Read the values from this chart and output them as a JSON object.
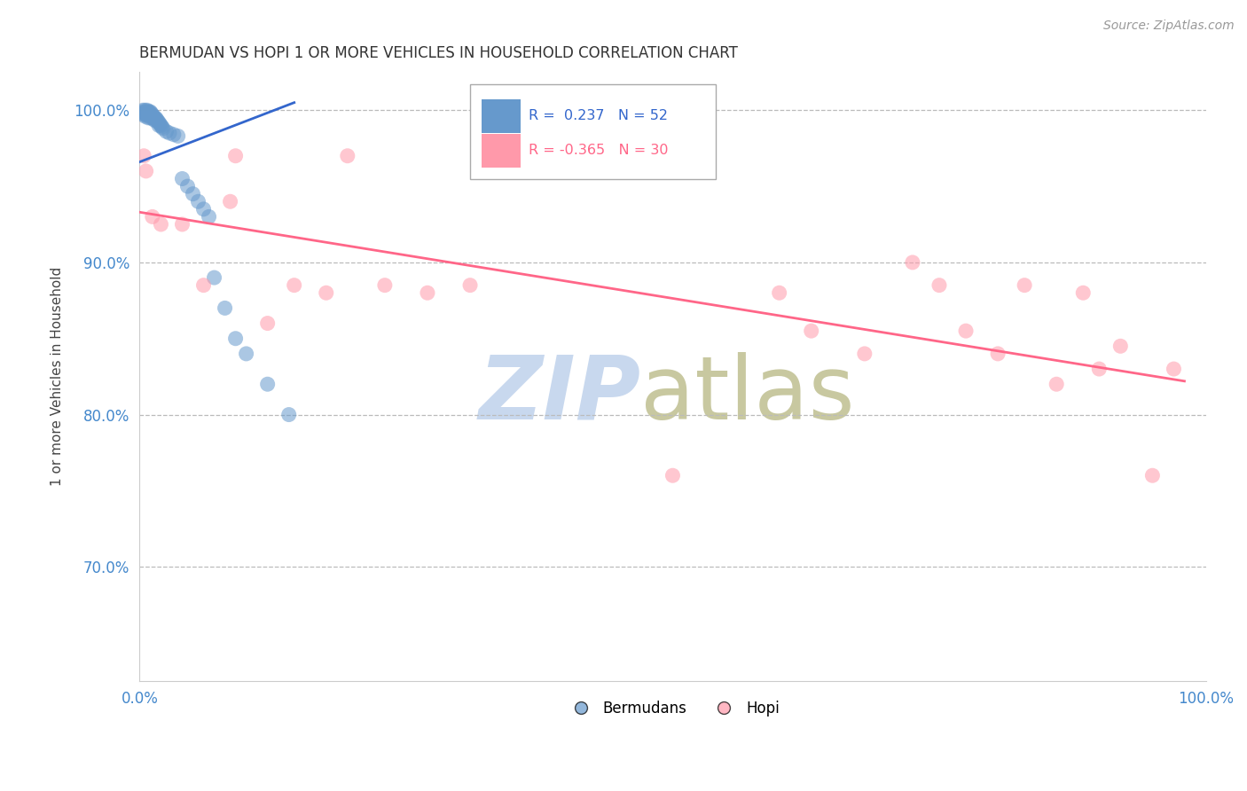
{
  "title": "BERMUDAN VS HOPI 1 OR MORE VEHICLES IN HOUSEHOLD CORRELATION CHART",
  "source": "Source: ZipAtlas.com",
  "ylabel": "1 or more Vehicles in Household",
  "xlim": [
    0.0,
    1.0
  ],
  "ylim": [
    0.625,
    1.025
  ],
  "y_tick_positions": [
    0.7,
    0.8,
    0.9,
    1.0
  ],
  "legend_r1": "0.237",
  "legend_n1": "52",
  "legend_r2": "-0.365",
  "legend_n2": "30",
  "bermudan_color": "#6699cc",
  "hopi_color": "#ff99aa",
  "trendline_blue": "#3366cc",
  "trendline_pink": "#ff6688",
  "grid_color": "#bbbbbb",
  "zip_color": "#c8d8ee",
  "atlas_color": "#c8c8a0",
  "bermudan_x": [
    0.003,
    0.003,
    0.004,
    0.004,
    0.005,
    0.005,
    0.005,
    0.006,
    0.006,
    0.007,
    0.007,
    0.008,
    0.008,
    0.008,
    0.009,
    0.009,
    0.01,
    0.01,
    0.01,
    0.011,
    0.011,
    0.012,
    0.012,
    0.013,
    0.013,
    0.014,
    0.015,
    0.015,
    0.016,
    0.017,
    0.018,
    0.018,
    0.019,
    0.02,
    0.021,
    0.022,
    0.025,
    0.028,
    0.032,
    0.036,
    0.04,
    0.045,
    0.05,
    0.055,
    0.06,
    0.065,
    0.07,
    0.08,
    0.09,
    0.1,
    0.12,
    0.14
  ],
  "bermudan_y": [
    1.0,
    0.998,
    0.999,
    0.997,
    1.0,
    0.998,
    0.996,
    0.999,
    0.997,
    1.0,
    0.998,
    0.999,
    0.997,
    0.995,
    0.999,
    0.997,
    0.999,
    0.997,
    0.995,
    0.998,
    0.996,
    0.997,
    0.995,
    0.996,
    0.994,
    0.995,
    0.995,
    0.993,
    0.994,
    0.993,
    0.992,
    0.99,
    0.991,
    0.99,
    0.989,
    0.988,
    0.986,
    0.985,
    0.984,
    0.983,
    0.955,
    0.95,
    0.945,
    0.94,
    0.935,
    0.93,
    0.89,
    0.87,
    0.85,
    0.84,
    0.82,
    0.8
  ],
  "hopi_x": [
    0.004,
    0.006,
    0.012,
    0.02,
    0.04,
    0.06,
    0.085,
    0.09,
    0.12,
    0.145,
    0.175,
    0.195,
    0.23,
    0.27,
    0.31,
    0.5,
    0.6,
    0.63,
    0.68,
    0.725,
    0.75,
    0.775,
    0.805,
    0.83,
    0.86,
    0.885,
    0.9,
    0.92,
    0.95,
    0.97
  ],
  "hopi_y": [
    0.97,
    0.96,
    0.93,
    0.925,
    0.925,
    0.885,
    0.94,
    0.97,
    0.86,
    0.885,
    0.88,
    0.97,
    0.885,
    0.88,
    0.885,
    0.76,
    0.88,
    0.855,
    0.84,
    0.9,
    0.885,
    0.855,
    0.84,
    0.885,
    0.82,
    0.88,
    0.83,
    0.845,
    0.76,
    0.83
  ],
  "blue_trend_x0": 0.0,
  "blue_trend_x1": 0.145,
  "blue_trend_y0": 0.966,
  "blue_trend_y1": 1.005,
  "pink_trend_x0": 0.0,
  "pink_trend_x1": 0.98,
  "pink_trend_y0": 0.933,
  "pink_trend_y1": 0.822
}
